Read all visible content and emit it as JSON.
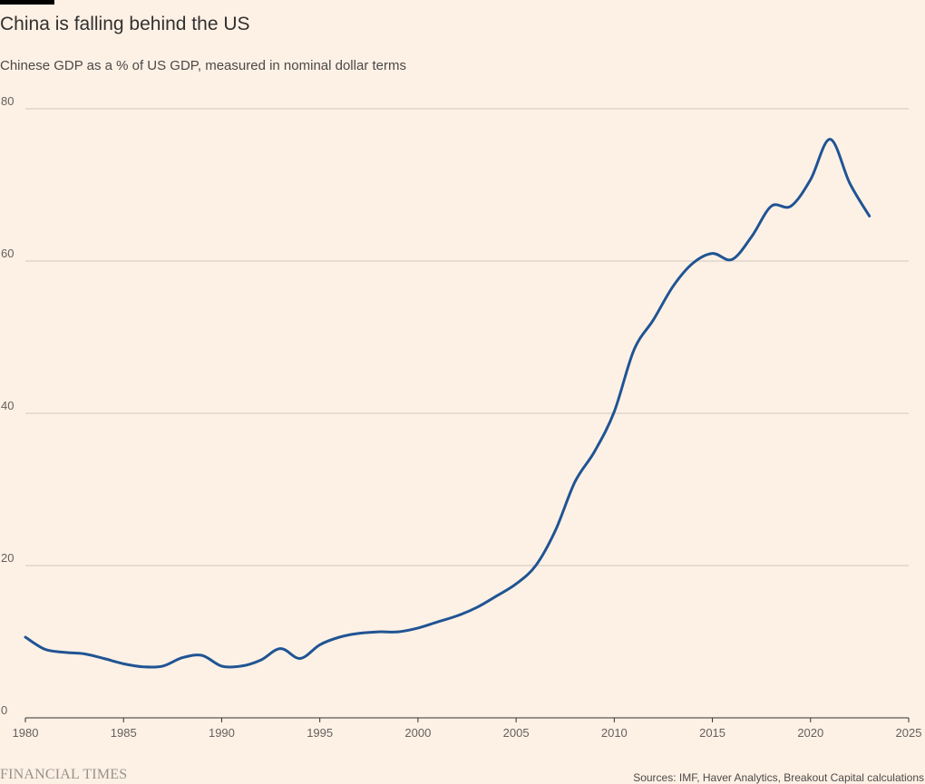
{
  "header": {
    "title": "China is falling behind the US",
    "subtitle": "Chinese GDP as a % of US GDP, measured in nominal dollar terms"
  },
  "footer": {
    "brand": "FINANCIAL TIMES",
    "source": "Sources: IMF, Haver Analytics, Breakout Capital calculations"
  },
  "colors": {
    "background": "#fdf1e6",
    "line": "#205493",
    "grid": "#cfc6bd",
    "axis": "#33302e"
  },
  "chart_data": {
    "type": "line",
    "title": "China is falling behind the US",
    "subtitle": "Chinese GDP as a % of US GDP, measured in nominal dollar terms",
    "xlabel": "",
    "ylabel": "",
    "xlim": [
      1980,
      2025
    ],
    "ylim": [
      0,
      80
    ],
    "xticks": [
      1980,
      1985,
      1990,
      1995,
      2000,
      2005,
      2010,
      2015,
      2020,
      2025
    ],
    "yticks": [
      0,
      20,
      40,
      60,
      80
    ],
    "grid": "horizontal",
    "series": [
      {
        "x": [
          1980,
          1981,
          1982,
          1983,
          1984,
          1985,
          1986,
          1987,
          1988,
          1989,
          1990,
          1991,
          1992,
          1993,
          1994,
          1995,
          1996,
          1997,
          1998,
          1999,
          2000,
          2001,
          2002,
          2003,
          2004,
          2005,
          2006,
          2007,
          2008,
          2009,
          2010,
          2011,
          2012,
          2013,
          2014,
          2015,
          2016,
          2017,
          2018,
          2019,
          2020,
          2021,
          2022,
          2023
        ],
        "values": [
          10.6,
          9.0,
          8.6,
          8.4,
          7.8,
          7.1,
          6.7,
          6.8,
          7.9,
          8.2,
          6.8,
          6.8,
          7.6,
          9.1,
          7.8,
          9.6,
          10.6,
          11.1,
          11.3,
          11.3,
          11.8,
          12.6,
          13.4,
          14.5,
          16.0,
          17.6,
          20.0,
          24.6,
          31.0,
          35.0,
          40.2,
          48.3,
          52.3,
          56.7,
          59.7,
          61.0,
          60.2,
          63.2,
          67.2,
          67.2,
          70.7,
          76.0,
          70.2,
          65.9
        ]
      }
    ]
  }
}
